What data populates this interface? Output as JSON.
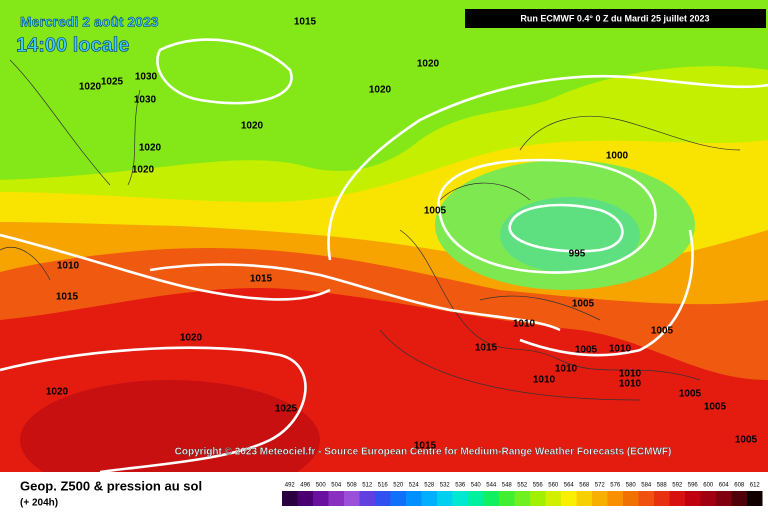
{
  "header": {
    "date": "Mercredi 2 août 2023",
    "time": "14:00 locale",
    "run": "Run ECMWF 0.4° 0 Z du Mardi 25 juillet 2023"
  },
  "copyright": "Copyright © 2023 Meteociel.fr - Source European Centre for Medium-Range Weather Forecasts (ECMWF)",
  "footer": {
    "title": "Geop. Z500 & pression au sol",
    "lead": "(+ 204h)"
  },
  "isobar_labels": [
    1015,
    1020,
    1025,
    1030,
    1030,
    1020,
    1020,
    1020,
    1020,
    1020,
    1000,
    1005,
    995,
    1010,
    1015,
    1015,
    1005,
    1005,
    1010,
    1015,
    1005,
    1010,
    1020,
    1010,
    1010,
    1010,
    1010,
    1020,
    1025,
    1005,
    1005,
    1005,
    1015
  ],
  "colorbar": {
    "labels": [
      492,
      496,
      500,
      504,
      508,
      512,
      516,
      520,
      524,
      528,
      532,
      536,
      540,
      544,
      548,
      552,
      556,
      560,
      564,
      568,
      572,
      576,
      580,
      584,
      588,
      592,
      596,
      600,
      604,
      608,
      612
    ],
    "colors": [
      "#2a0040",
      "#4a0070",
      "#6a10a0",
      "#8a30c0",
      "#9a50d8",
      "#6040e0",
      "#3050f0",
      "#1070f8",
      "#0090ff",
      "#00b0ff",
      "#00d0f0",
      "#00e8d0",
      "#00f0a0",
      "#10f060",
      "#40f030",
      "#70f020",
      "#a0f000",
      "#d0f000",
      "#f8f000",
      "#f8d000",
      "#f8b000",
      "#f89000",
      "#f07000",
      "#f05010",
      "#e83010",
      "#d81010",
      "#c00010",
      "#a00010",
      "#800010",
      "#500008",
      "#100000"
    ]
  }
}
